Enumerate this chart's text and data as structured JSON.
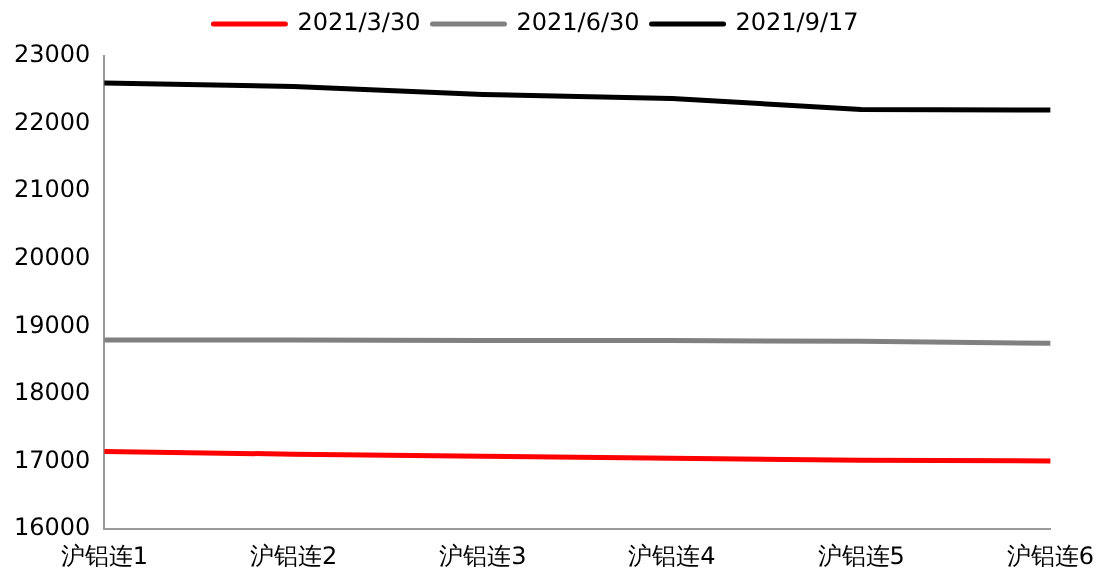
{
  "chart_data": {
    "type": "line",
    "categories": [
      "沪铝连1",
      "沪铝连2",
      "沪铝连3",
      "沪铝连4",
      "沪铝连5",
      "沪铝连6"
    ],
    "series": [
      {
        "name": "2021/3/30",
        "color": "#ff0000",
        "values": [
          17150,
          17110,
          17080,
          17050,
          17020,
          17010
        ]
      },
      {
        "name": "2021/6/30",
        "color": "#808080",
        "values": [
          18800,
          18800,
          18790,
          18790,
          18780,
          18750
        ]
      },
      {
        "name": "2021/9/17",
        "color": "#000000",
        "values": [
          22600,
          22550,
          22430,
          22370,
          22210,
          22200
        ]
      }
    ],
    "ylim": [
      16000,
      23000
    ],
    "yticks": [
      16000,
      17000,
      18000,
      19000,
      20000,
      21000,
      22000,
      23000
    ],
    "grid": false,
    "legend": "top",
    "marker": "none",
    "line_style": "solid"
  }
}
